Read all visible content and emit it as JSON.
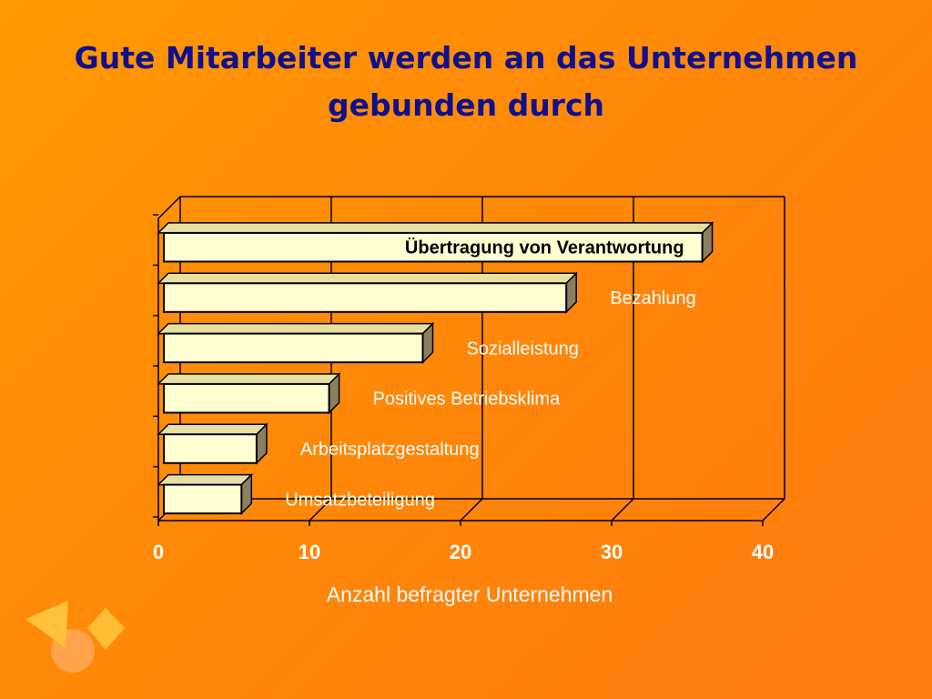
{
  "slide": {
    "title_line1": "Gute Mitarbeiter werden an das Unternehmen",
    "title_line2": "gebunden durch"
  },
  "colors": {
    "background": "#ff8a08",
    "title": "#10108c",
    "bar_face": "#ffffd2",
    "bar_top": "#e8e0a0",
    "bar_side": "#8a8060",
    "text": "#ffffff"
  },
  "chart_data": {
    "type": "bar",
    "orientation": "horizontal",
    "style": "3d",
    "categories": [
      "Übertragung von Verantwortung",
      "Bezahlung",
      "Sozialleistung",
      "Positives Betriebsklima",
      "Arbeitsplatzgestaltung",
      "Umsatzbeteiligung"
    ],
    "values": [
      36,
      27,
      17.5,
      11.3,
      6.5,
      5.5
    ],
    "xlabel": "Anzahl befragter Unternehmen",
    "xticks": [
      "0",
      "10",
      "20",
      "30",
      "40"
    ],
    "xlim": [
      0,
      40
    ],
    "grid": true,
    "legend": "none"
  }
}
